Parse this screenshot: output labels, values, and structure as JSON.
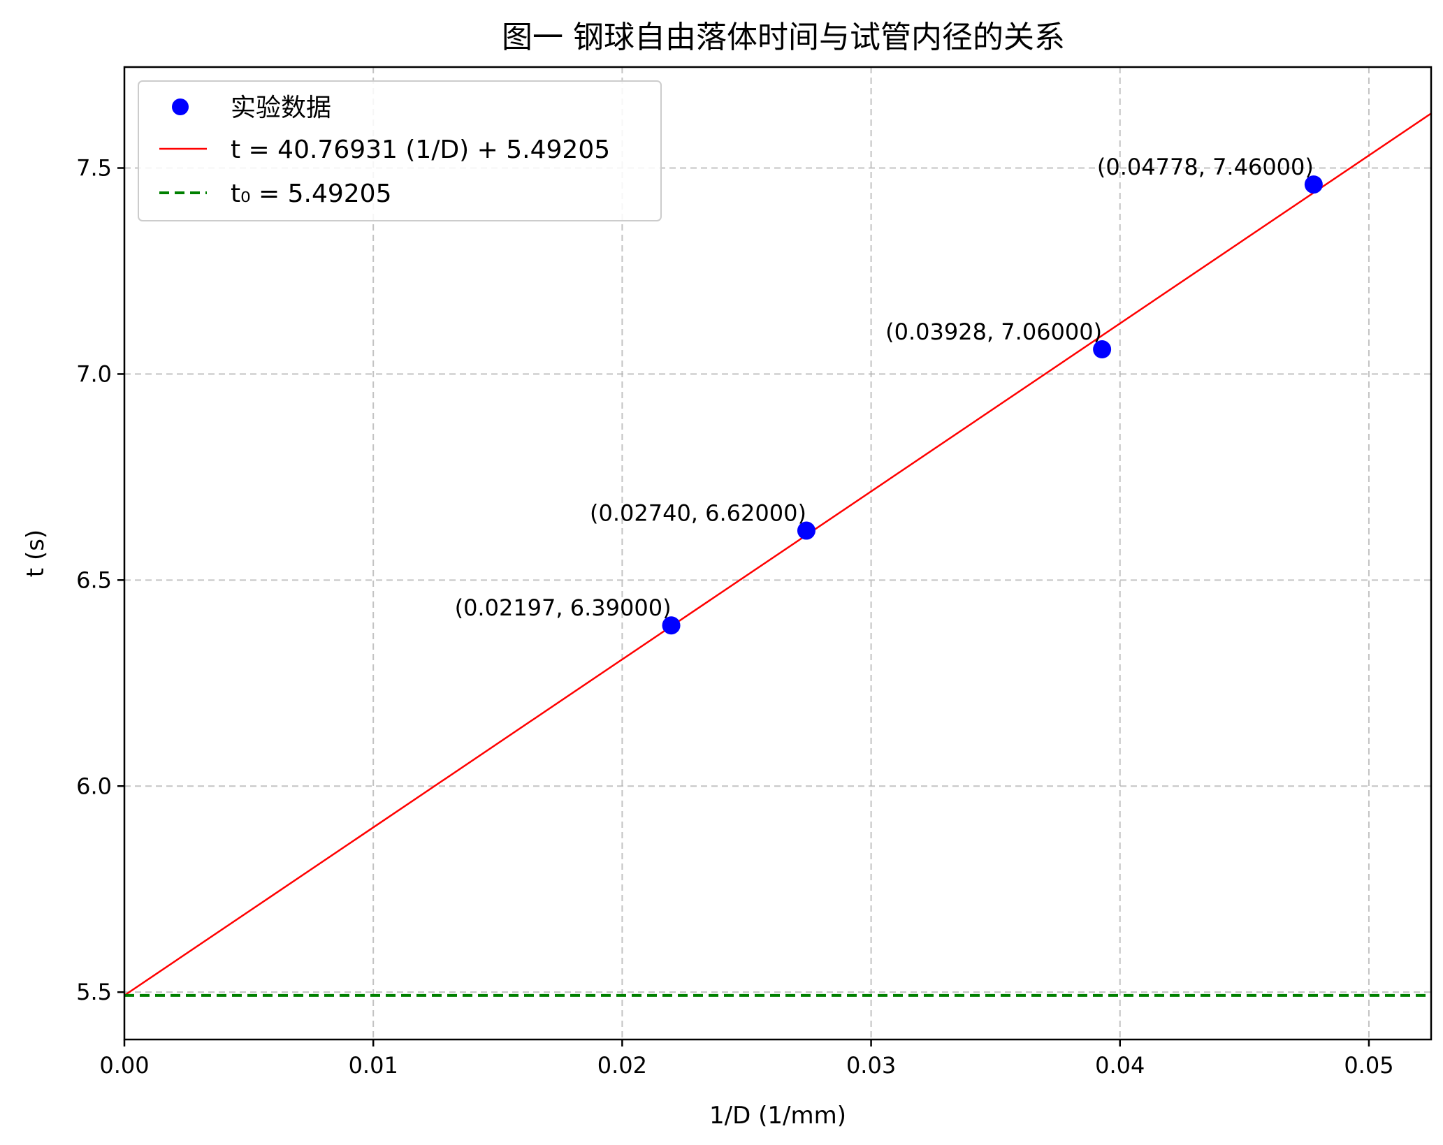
{
  "chart_data": {
    "type": "scatter",
    "title": "图一 钢球自由落体时间与试管内径的关系",
    "xlabel": "1/D (1/mm)",
    "ylabel": "t (s)",
    "xlim": [
      0.0,
      0.0525
    ],
    "ylim": [
      5.385,
      7.745
    ],
    "xticks": [
      0.0,
      0.01,
      0.02,
      0.03,
      0.04,
      0.05
    ],
    "xtick_labels": [
      "0.00",
      "0.01",
      "0.02",
      "0.03",
      "0.04",
      "0.05"
    ],
    "yticks": [
      5.5,
      6.0,
      6.5,
      7.0,
      7.5
    ],
    "ytick_labels": [
      "5.5",
      "6.0",
      "6.5",
      "7.0",
      "7.5"
    ],
    "grid": true,
    "legend_position": "top-left",
    "series": [
      {
        "name": "实验数据",
        "kind": "scatter",
        "color": "#0000ff",
        "points": [
          {
            "x": 0.02197,
            "y": 6.39,
            "label": "(0.02197, 6.39000)"
          },
          {
            "x": 0.0274,
            "y": 6.62,
            "label": "(0.02740, 6.62000)"
          },
          {
            "x": 0.03928,
            "y": 7.06,
            "label": "(0.03928, 7.06000)"
          },
          {
            "x": 0.04778,
            "y": 7.46,
            "label": "(0.04778, 7.46000)"
          }
        ]
      },
      {
        "name": "t = 40.76931 (1/D) + 5.49205",
        "kind": "line",
        "color": "#ff0000",
        "slope": 40.76931,
        "intercept": 5.49205
      },
      {
        "name": "t₀ = 5.49205",
        "kind": "hline",
        "color": "#008000",
        "y": 5.49205
      }
    ]
  }
}
